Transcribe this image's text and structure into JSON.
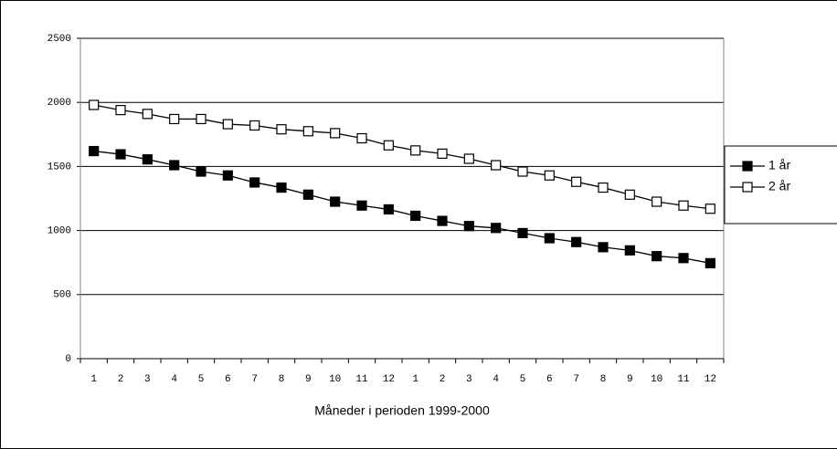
{
  "chart_data": {
    "type": "line",
    "x_label": "Måneder i perioden 1999-2000",
    "categories": [
      "1",
      "2",
      "3",
      "4",
      "5",
      "6",
      "7",
      "8",
      "9",
      "10",
      "11",
      "12",
      "1",
      "2",
      "3",
      "4",
      "5",
      "6",
      "7",
      "8",
      "9",
      "10",
      "11",
      "12"
    ],
    "series": [
      {
        "name": "1 år",
        "color": "#000000",
        "marker": "filled-square",
        "values": [
          1620,
          1595,
          1555,
          1510,
          1460,
          1430,
          1375,
          1335,
          1280,
          1225,
          1195,
          1165,
          1115,
          1075,
          1035,
          1020,
          980,
          940,
          910,
          870,
          845,
          800,
          785,
          745
        ]
      },
      {
        "name": "2 år",
        "color": "#000000",
        "marker": "open-square",
        "values": [
          1980,
          1940,
          1910,
          1870,
          1870,
          1830,
          1820,
          1790,
          1775,
          1760,
          1720,
          1665,
          1625,
          1600,
          1560,
          1510,
          1460,
          1430,
          1380,
          1335,
          1280,
          1225,
          1195,
          1170
        ]
      }
    ],
    "ylim": [
      0,
      2500
    ],
    "yticks": [
      0,
      500,
      1000,
      1500,
      2000,
      2500
    ],
    "grid": true,
    "legend": "right"
  }
}
